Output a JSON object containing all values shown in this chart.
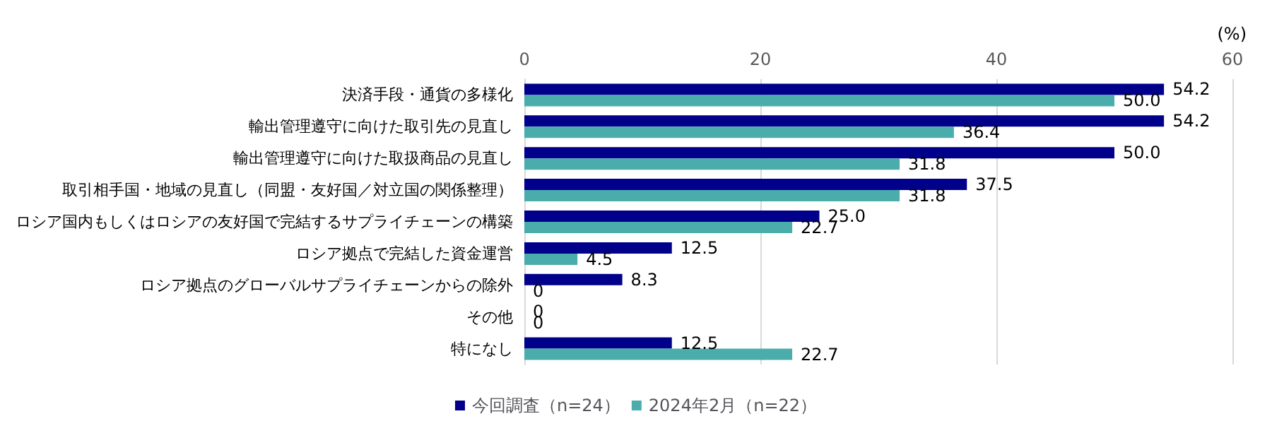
{
  "chart_data": {
    "type": "bar",
    "orientation": "horizontal",
    "xlabel": "(%)",
    "categories": [
      "決済手段・通貨の多様化",
      "輸出管理遵守に向けた取引先の見直し",
      "輸出管理遵守に向けた取扱商品の見直し",
      "取引相手国・地域の見直し（同盟・友好国／対立国の関係整理）",
      "ロシア国内もしくはロシアの友好国で完結するサプライチェーンの構築",
      "ロシア拠点で完結した資金運営",
      "ロシア拠点のグローバルサプライチェーンからの除外",
      "その他",
      "特になし"
    ],
    "series": [
      {
        "name": "今回調査（n=24）",
        "color": "#00008b",
        "values": [
          54.2,
          54.2,
          50.0,
          37.5,
          25.0,
          12.5,
          8.3,
          0,
          12.5
        ],
        "value_labels": [
          "54.2",
          "54.2",
          "50.0",
          "37.5",
          "25.0",
          "12.5",
          "8.3",
          "0",
          "12.5"
        ]
      },
      {
        "name": "2024年2月（n=22）",
        "color": "#4bacac",
        "values": [
          50.0,
          36.4,
          31.8,
          31.8,
          22.7,
          4.5,
          0,
          0,
          22.7
        ],
        "value_labels": [
          "50.0",
          "36.4",
          "31.8",
          "31.8",
          "22.7",
          "4.5",
          "0",
          "0",
          "22.7"
        ]
      }
    ],
    "xlim": [
      0,
      60
    ],
    "xticks": [
      0,
      20,
      40,
      60
    ],
    "grid": "x",
    "legend": "bottom"
  }
}
